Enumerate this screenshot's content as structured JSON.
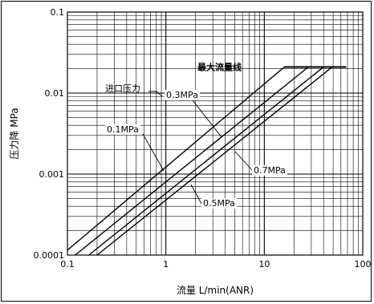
{
  "chart_data": {
    "type": "line",
    "xscale": "log",
    "yscale": "log",
    "xlim": [
      0.1,
      100
    ],
    "ylim": [
      0.0001,
      0.1
    ],
    "grid": true,
    "xlabel": "流量 L/min(ANR)",
    "ylabel": "压力降 MPa",
    "x_ticks": [
      "0.1",
      "1",
      "10",
      "100"
    ],
    "y_ticks": [
      "0.0001",
      "0.001",
      "0.01",
      "0.1"
    ],
    "series": [
      {
        "name": "0.1MPa",
        "x": [
          0.1,
          16
        ],
        "y": [
          0.000115,
          0.021
        ]
      },
      {
        "name": "0.3MPa",
        "x": [
          0.12,
          28
        ],
        "y": [
          0.0001,
          0.021
        ]
      },
      {
        "name": "0.5MPa",
        "x": [
          0.165,
          40
        ],
        "y": [
          0.0001,
          0.021
        ]
      },
      {
        "name": "0.7MPa",
        "x": [
          0.2,
          49
        ],
        "y": [
          0.0001,
          0.021
        ]
      }
    ],
    "max_flow_line": {
      "label": "最大流量线",
      "y": 0.021,
      "x": [
        16,
        68
      ]
    },
    "annotations": {
      "inlet_pressure": "进口压力",
      "p01": "0.1MPa",
      "p03": "0.3MPa",
      "p05": "0.5MPa",
      "p07": "0.7MPa"
    }
  }
}
